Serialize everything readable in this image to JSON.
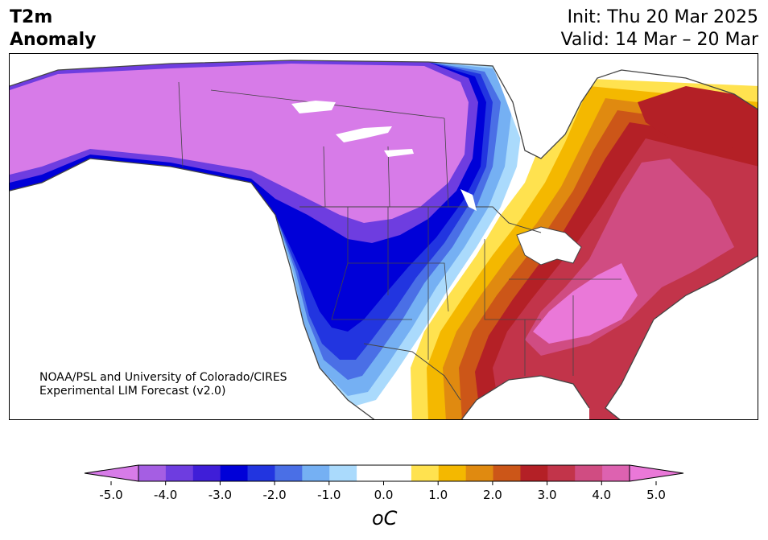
{
  "header": {
    "title_line1": "T2m",
    "title_line2": "Anomaly",
    "init": "Init: Thu 20 Mar 2025",
    "valid": "Valid: 14 Mar – 20 Mar"
  },
  "credit": {
    "line1": "NOAA/PSL and University of Colorado/CIRES",
    "line2": "Experimental LIM Forecast (v2.0)"
  },
  "colorbar": {
    "unit": "oC",
    "ticks": [
      "-5.0",
      "-4.0",
      "-3.0",
      "-2.0",
      "-1.0",
      "0.0",
      "1.0",
      "2.0",
      "3.0",
      "4.0",
      "5.0"
    ],
    "colors": [
      "#d77be8",
      "#a55ee3",
      "#6e3de0",
      "#3f1ed8",
      "#0000d8",
      "#2235e0",
      "#4a6fe6",
      "#75b0f3",
      "#aadafc",
      "#ffffff",
      "#ffffff",
      "#ffe24f",
      "#f4b800",
      "#e08a10",
      "#cc5618",
      "#b42026",
      "#c2344a",
      "#d04c82",
      "#dd62b0",
      "#ea78d8"
    ]
  }
}
